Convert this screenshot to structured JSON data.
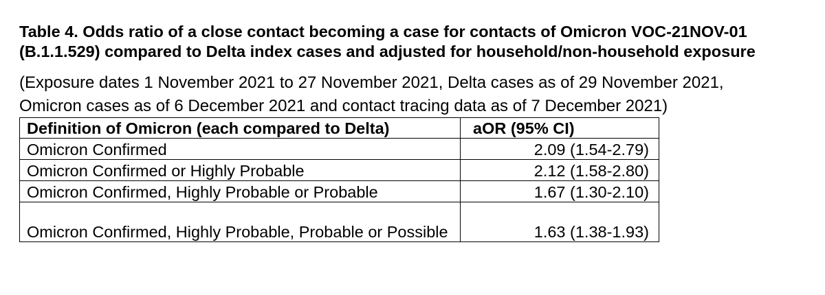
{
  "title": "Table 4. Odds ratio of a close contact becoming a case for contacts of Omicron VOC-21NOV-01 (B.1.1.529) compared to Delta index cases and adjusted for household/non-household exposure",
  "note": "(Exposure dates 1 November 2021 to 27 November 2021, Delta cases as of 29 November 2021, Omicron cases as of 6 December 2021 and contact tracing data as of 7 December 2021)",
  "table": {
    "headers": [
      "Definition of Omicron (each compared to Delta)",
      "aOR (95% CI)"
    ],
    "rows": [
      {
        "definition": "Omicron Confirmed",
        "aor": "2.09 (1.54-2.79)"
      },
      {
        "definition": "Omicron Confirmed or Highly Probable",
        "aor": "2.12 (1.58-2.80)"
      },
      {
        "definition": "Omicron Confirmed, Highly Probable or Probable",
        "aor": "1.67 (1.30-2.10)"
      },
      {
        "definition": "Omicron Confirmed, Highly Probable, Probable or Possible",
        "aor": "1.63 (1.38-1.93)"
      }
    ]
  }
}
